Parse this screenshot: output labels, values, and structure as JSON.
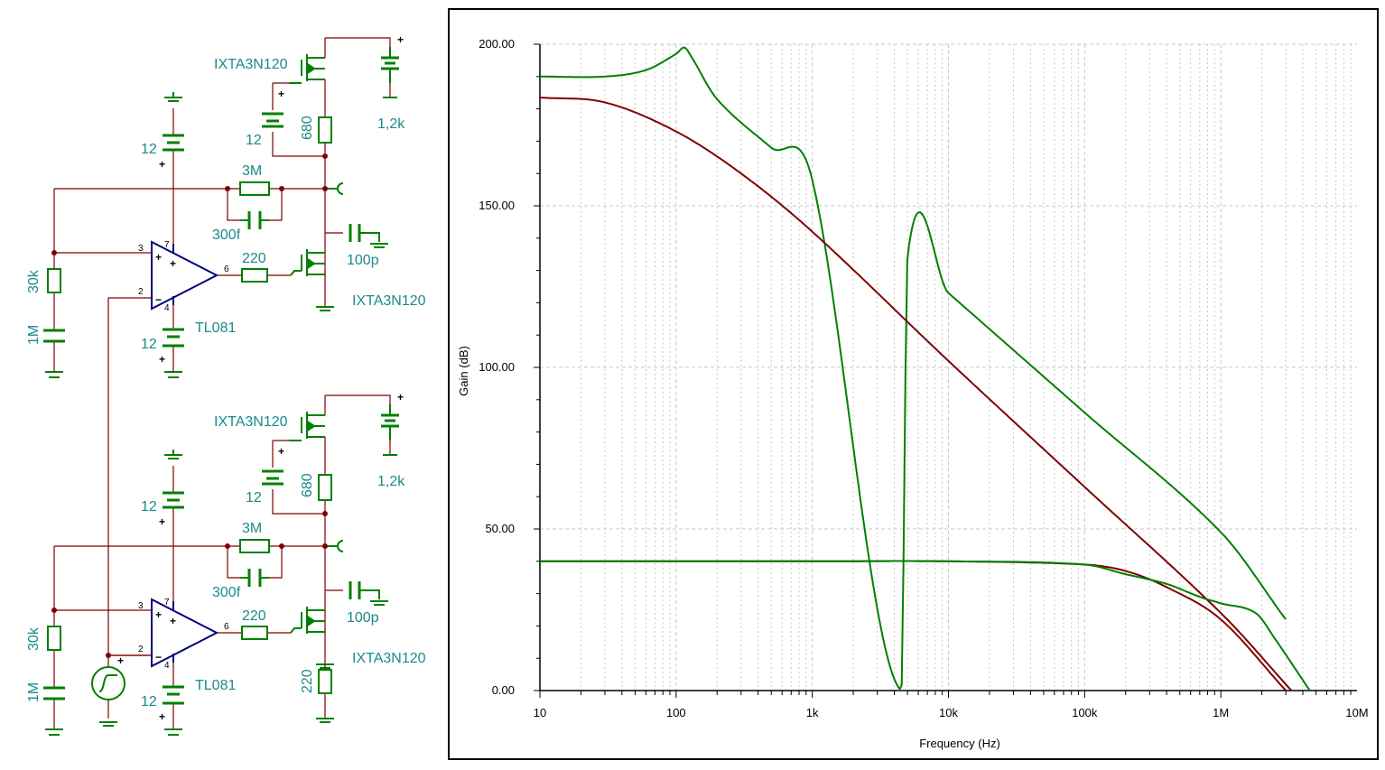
{
  "schematic": {
    "stages": [
      {
        "mosfet_top": "IXTA3N120",
        "supply_top": "1,2k",
        "battery_gate": "12",
        "resistor_drain": "680",
        "resistor_fb": "3M",
        "cap_fb": "300f",
        "cap_out": "100p",
        "resistor_gate": "220",
        "mosfet_bottom": "IXTA3N120",
        "opamp": "TL081",
        "battery_vpos": "12",
        "battery_vneg": "12",
        "resistor_in": "30k",
        "cap_in": "1M",
        "pin_plus": "3",
        "pin_minus": "2",
        "pin_out": "6",
        "pin_v7": "7",
        "pin_v4": "4"
      },
      {
        "mosfet_top": "IXTA3N120",
        "supply_top": "1,2k",
        "battery_gate": "12",
        "resistor_drain": "680",
        "resistor_fb": "3M",
        "cap_fb": "300f",
        "cap_out": "100p",
        "resistor_gate": "220",
        "mosfet_bottom": "IXTA3N120",
        "opamp": "TL081",
        "battery_vpos": "12",
        "battery_vneg": "12",
        "resistor_in": "30k",
        "cap_in": "1M",
        "pin_plus": "3",
        "pin_minus": "2",
        "pin_out": "6",
        "pin_v7": "7",
        "pin_v4": "4",
        "resistor_source": "220"
      }
    ],
    "plus": "+",
    "minus": "−"
  },
  "colors": {
    "component": "#008000",
    "wire": "#800000",
    "label": "#1a8a8a",
    "opamp": "#000080"
  },
  "chart_data": {
    "type": "line",
    "xlabel": "Frequency (Hz)",
    "ylabel": "Gain (dB)",
    "x_scale": "log",
    "xlim": [
      10,
      10000000
    ],
    "ylim": [
      0,
      200
    ],
    "x_ticks": [
      {
        "v": 10,
        "label": "10"
      },
      {
        "v": 100,
        "label": "100"
      },
      {
        "v": 1000,
        "label": "1k"
      },
      {
        "v": 10000,
        "label": "10k"
      },
      {
        "v": 100000,
        "label": "100k"
      },
      {
        "v": 1000000,
        "label": "1M"
      },
      {
        "v": 10000000,
        "label": "10M"
      }
    ],
    "y_ticks": [
      {
        "v": 0,
        "label": "0.00"
      },
      {
        "v": 50,
        "label": "50.00"
      },
      {
        "v": 100,
        "label": "100.00"
      },
      {
        "v": 150,
        "label": "150.00"
      },
      {
        "v": 200,
        "label": "200.00"
      }
    ],
    "grid": true,
    "series": [
      {
        "color": "#008000",
        "points": [
          [
            10,
            190
          ],
          [
            30,
            190
          ],
          [
            60,
            192
          ],
          [
            100,
            197
          ],
          [
            115,
            199
          ],
          [
            130,
            196
          ],
          [
            200,
            183
          ],
          [
            500,
            168
          ],
          [
            1000,
            158
          ],
          [
            5000,
            134
          ],
          [
            10000,
            123
          ],
          [
            100000,
            86
          ],
          [
            1000000,
            49
          ],
          [
            3000000,
            22
          ],
          [
            4500,
            0
          ]
        ]
      },
      {
        "color": "#800000",
        "points": [
          [
            10,
            183.5
          ],
          [
            30,
            182
          ],
          [
            100,
            173
          ],
          [
            300,
            160
          ],
          [
            1000,
            142
          ],
          [
            10000,
            102
          ],
          [
            100000,
            63
          ],
          [
            1000000,
            24
          ],
          [
            3300000,
            0
          ]
        ]
      },
      {
        "color": "#800000",
        "points": [
          [
            10,
            40
          ],
          [
            1000,
            40
          ],
          [
            10000,
            40
          ],
          [
            100000,
            39
          ],
          [
            200000,
            37
          ],
          [
            400000,
            32
          ],
          [
            1000000,
            22
          ],
          [
            3000000,
            0
          ]
        ]
      },
      {
        "color": "#008000",
        "points": [
          [
            10,
            40
          ],
          [
            1000,
            40
          ],
          [
            10000,
            40
          ],
          [
            100000,
            39
          ],
          [
            200000,
            36
          ],
          [
            400000,
            33
          ],
          [
            700000,
            29
          ],
          [
            1000000,
            27
          ],
          [
            1800000,
            24
          ],
          [
            2500000,
            16
          ],
          [
            4500000,
            0
          ]
        ]
      }
    ]
  }
}
